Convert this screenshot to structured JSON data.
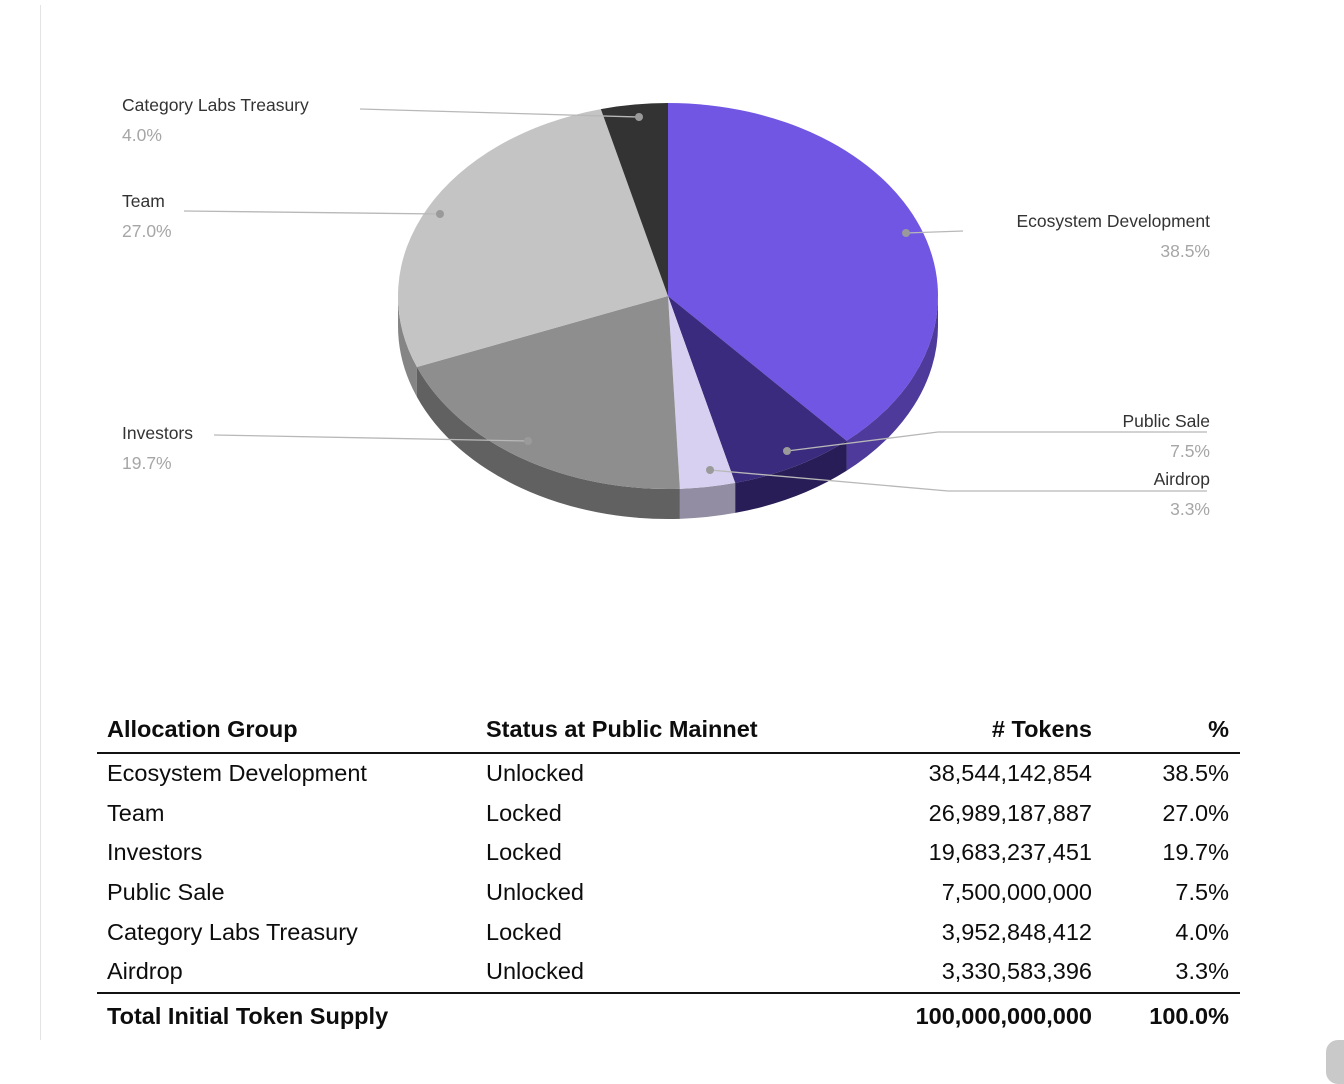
{
  "chart_data": {
    "type": "pie",
    "labels": [
      "Ecosystem Development",
      "Public Sale",
      "Airdrop",
      "Investors",
      "Team",
      "Category Labs Treasury"
    ],
    "values": [
      38.5,
      7.5,
      3.3,
      19.7,
      27.0,
      4.0
    ],
    "percent_labels": [
      "38.5%",
      "7.5%",
      "3.3%",
      "19.7%",
      "27.0%",
      "4.0%"
    ],
    "colors": [
      "#7156E3",
      "#3B2B7E",
      "#D7D0F0",
      "#8E8E8E",
      "#C4C4C4",
      "#333333"
    ],
    "legend_position": "callouts",
    "style": "3d-pie"
  },
  "table": {
    "headers": [
      "Allocation Group",
      "Status at Public Mainnet",
      "# Tokens",
      "%"
    ],
    "rows": [
      [
        "Ecosystem Development",
        "Unlocked",
        "38,544,142,854",
        "38.5%"
      ],
      [
        "Team",
        "Locked",
        "26,989,187,887",
        "27.0%"
      ],
      [
        "Investors",
        "Locked",
        "19,683,237,451",
        "19.7%"
      ],
      [
        "Public Sale",
        "Unlocked",
        "7,500,000,000",
        "7.5%"
      ],
      [
        "Category Labs Treasury",
        "Locked",
        "3,952,848,412",
        "4.0%"
      ],
      [
        "Airdrop",
        "Unlocked",
        "3,330,583,396",
        "3.3%"
      ]
    ],
    "total": {
      "label": "Total Initial Token Supply",
      "tokens": "100,000,000,000",
      "percent": "100.0%"
    }
  }
}
